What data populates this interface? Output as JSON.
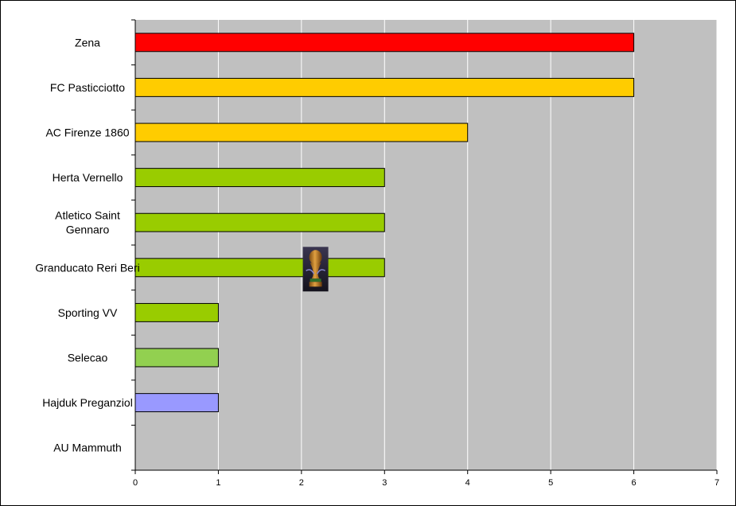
{
  "chart_data": {
    "type": "bar",
    "orientation": "horizontal",
    "title": "",
    "xlabel": "",
    "ylabel": "",
    "xlim": [
      0,
      7
    ],
    "x_ticks": [
      "0",
      "1",
      "2",
      "3",
      "4",
      "5",
      "6",
      "7"
    ],
    "grid": "vertical",
    "legend": "none",
    "plot_background": "#c0c0c0",
    "categories": [
      {
        "label": "Zena",
        "lines": [
          "Zena"
        ],
        "value": 6,
        "color": "#ff0000"
      },
      {
        "label": "FC Pasticciotto",
        "lines": [
          "FC Pasticciotto"
        ],
        "value": 6,
        "color": "#ffcc00"
      },
      {
        "label": "AC Firenze 1860",
        "lines": [
          "AC Firenze 1860"
        ],
        "value": 4,
        "color": "#ffcc00"
      },
      {
        "label": "Herta Vernello",
        "lines": [
          "Herta Vernello"
        ],
        "value": 3,
        "color": "#99cc00"
      },
      {
        "label": "Atletico Saint Gennaro",
        "lines": [
          "Atletico Saint",
          "Gennaro"
        ],
        "value": 3,
        "color": "#99cc00"
      },
      {
        "label": "Granducato Reri Beri",
        "lines": [
          "Granducato Reri Beri"
        ],
        "value": 3,
        "color": "#99cc00"
      },
      {
        "label": "Sporting VV",
        "lines": [
          "Sporting VV"
        ],
        "value": 1,
        "color": "#99cc00"
      },
      {
        "label": "Selecao",
        "lines": [
          "Selecao"
        ],
        "value": 1,
        "color": "#92d050"
      },
      {
        "label": "Hajduk Preganziol",
        "lines": [
          "Hajduk Preganziol"
        ],
        "value": 1,
        "color": "#9999ff"
      },
      {
        "label": "AU Mammuth",
        "lines": [
          "AU Mammuth"
        ],
        "value": 0,
        "color": "#99cc00"
      }
    ],
    "trophy_marker": {
      "icon": "world-cup-trophy-icon",
      "value": 2.17,
      "category_index": 5
    }
  }
}
